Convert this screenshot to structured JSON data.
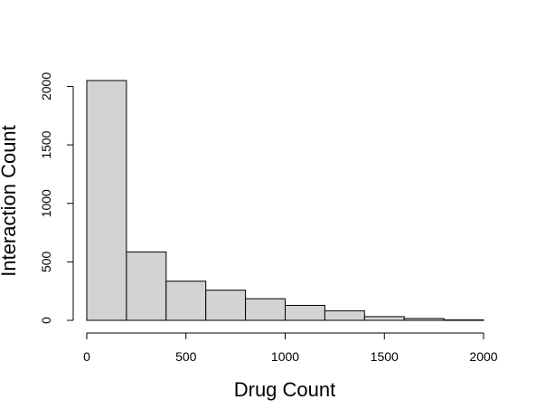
{
  "chart_data": {
    "type": "bar",
    "title": "",
    "xlabel": "Drug Count",
    "ylabel": "Interaction Count",
    "bins": [
      {
        "x0": 0,
        "x1": 200,
        "count": 2050
      },
      {
        "x0": 200,
        "x1": 400,
        "count": 585
      },
      {
        "x0": 400,
        "x1": 600,
        "count": 335
      },
      {
        "x0": 600,
        "x1": 800,
        "count": 258
      },
      {
        "x0": 800,
        "x1": 1000,
        "count": 185
      },
      {
        "x0": 1000,
        "x1": 1200,
        "count": 128
      },
      {
        "x0": 1200,
        "x1": 1400,
        "count": 82
      },
      {
        "x0": 1400,
        "x1": 1600,
        "count": 32
      },
      {
        "x0": 1600,
        "x1": 1800,
        "count": 16
      },
      {
        "x0": 1800,
        "x1": 2000,
        "count": 4
      }
    ],
    "xlim": [
      0,
      2000
    ],
    "ylim": [
      0,
      2050
    ],
    "xticks": [
      0,
      500,
      1000,
      1500,
      2000
    ],
    "yticks": [
      0,
      500,
      1000,
      1500,
      2000
    ],
    "grid": false,
    "legend": "none",
    "colors": {
      "bar_fill": "#d3d3d3",
      "bar_stroke": "#000000",
      "axis": "#000000"
    }
  }
}
